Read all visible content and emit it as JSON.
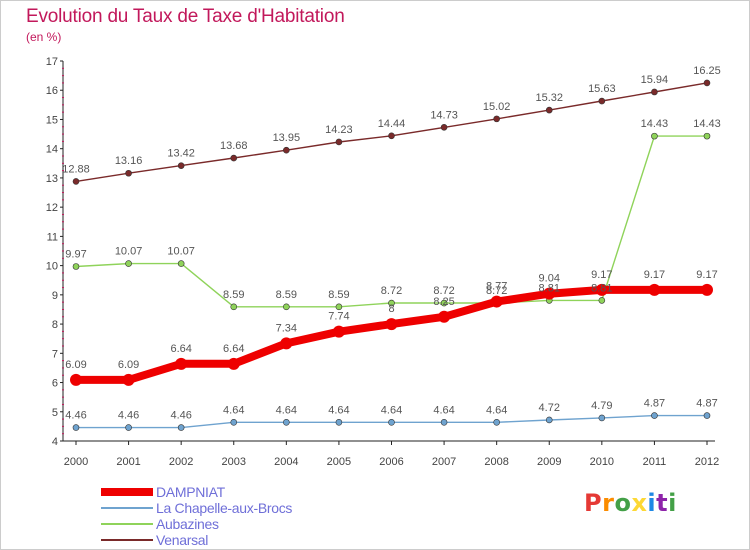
{
  "title": "Evolution du Taux de Taxe d'Habitation",
  "unit": "(en %)",
  "brand": {
    "text": "Proxiti",
    "letter_colors": [
      "#e53935",
      "#fb8c00",
      "#43a047",
      "#fdd835",
      "#1e88e5",
      "#8e24aa",
      "#43a047"
    ]
  },
  "chart_data": {
    "type": "line",
    "x": [
      "2000",
      "2001",
      "2002",
      "2003",
      "2004",
      "2005",
      "2006",
      "2007",
      "2008",
      "2009",
      "2010",
      "2011",
      "2012"
    ],
    "ylim": [
      4,
      17
    ],
    "yticks": [
      "4",
      "5",
      "6",
      "7",
      "8",
      "9",
      "10",
      "11",
      "12",
      "13",
      "14",
      "15",
      "16",
      "17"
    ],
    "grid": false,
    "legend_position": "bottom-left",
    "series": [
      {
        "name": "Venarsal",
        "color": "#7a2a2a",
        "values": [
          12.88,
          13.16,
          13.42,
          13.68,
          13.95,
          14.23,
          14.44,
          14.73,
          15.02,
          15.32,
          15.63,
          15.94,
          16.25
        ],
        "labels": [
          "12.88",
          "13.16",
          "13.42",
          "13.68",
          "13.95",
          "14.23",
          "14.44",
          "14.73",
          "15.02",
          "15.32",
          "15.63",
          "15.94",
          "16.25"
        ]
      },
      {
        "name": "Aubazines",
        "color": "#8fd35a",
        "values": [
          9.97,
          10.07,
          10.07,
          8.59,
          8.59,
          8.59,
          8.72,
          8.72,
          8.72,
          8.81,
          8.81,
          14.43,
          14.43
        ],
        "labels": [
          "9.97",
          "10.07",
          "10.07",
          "8.59",
          "8.59",
          "8.59",
          "8.72",
          "8.72",
          "8.72",
          "8.81",
          "8.81",
          "14.43",
          "14.43"
        ]
      },
      {
        "name": "La Chapelle-aux-Brocs",
        "color": "#6fa3cf",
        "values": [
          4.46,
          4.46,
          4.46,
          4.64,
          4.64,
          4.64,
          4.64,
          4.64,
          4.64,
          4.72,
          4.79,
          4.87,
          4.87
        ],
        "labels": [
          "4.46",
          "4.46",
          "4.46",
          "4.64",
          "4.64",
          "4.64",
          "4.64",
          "4.64",
          "4.64",
          "4.72",
          "4.79",
          "4.87",
          "4.87"
        ]
      },
      {
        "name": "DAMPNIAT",
        "color": "#ee0000",
        "values": [
          6.09,
          6.09,
          6.64,
          6.64,
          7.34,
          7.74,
          8,
          8.25,
          8.77,
          9.04,
          9.17,
          9.17,
          9.17
        ],
        "labels": [
          "6.09",
          "6.09",
          "6.64",
          "6.64",
          "7.34",
          "7.74",
          "8",
          "8.25",
          "8.77",
          "9.04",
          "9.17",
          "9.17",
          "9.17"
        ]
      }
    ]
  }
}
